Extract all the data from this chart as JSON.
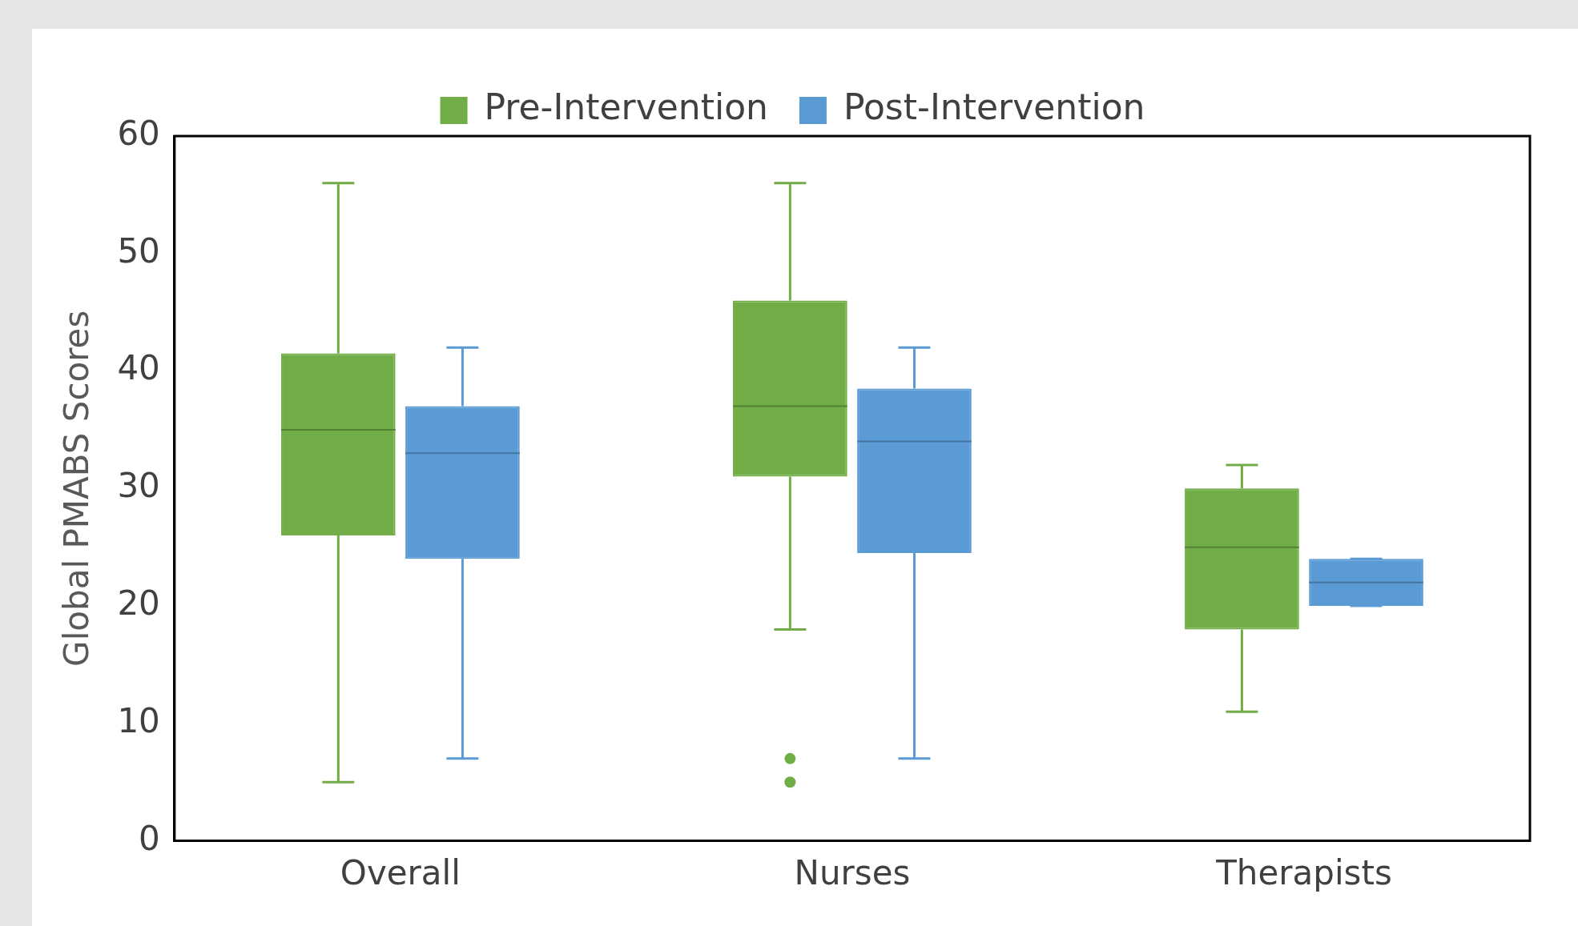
{
  "chart_data": {
    "type": "box",
    "ylabel": "Global PMABS Scores",
    "categories": [
      "Overall",
      "Nurses",
      "Therapists"
    ],
    "series": [
      {
        "name": "Pre-Intervention",
        "color": "#70ad47",
        "boxes": [
          {
            "low": 5,
            "q1": 26,
            "median": 35,
            "q3": 41.5,
            "high": 56
          },
          {
            "low": 18,
            "q1": 31,
            "median": 37,
            "q3": 46,
            "high": 56,
            "outliers": [
              7,
              5
            ]
          },
          {
            "low": 11,
            "q1": 18,
            "median": 25,
            "q3": 30,
            "high": 32
          }
        ]
      },
      {
        "name": "Post-Intervention",
        "color": "#5b9bd5",
        "boxes": [
          {
            "low": 7,
            "q1": 24,
            "median": 33,
            "q3": 37,
            "high": 42
          },
          {
            "low": 7,
            "q1": 24.5,
            "median": 34,
            "q3": 38.5,
            "high": 42
          },
          {
            "low": 20,
            "q1": 20,
            "median": 22,
            "q3": 24,
            "high": 24
          }
        ]
      }
    ],
    "ylim": [
      0,
      60
    ],
    "yticks": [
      0,
      10,
      20,
      30,
      40,
      50,
      60
    ],
    "grid": false,
    "legend": "top"
  }
}
